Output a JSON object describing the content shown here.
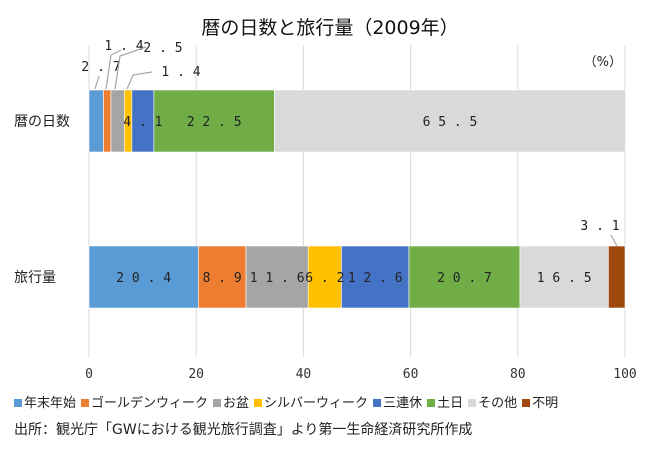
{
  "chart_data": {
    "type": "bar",
    "orientation": "horizontal",
    "stacked": true,
    "title": "暦の日数と旅行量（2009年）",
    "unit_label": "（%）",
    "categories": [
      "暦の日数",
      "旅行量"
    ],
    "series": [
      {
        "name": "年末年始",
        "color": "#5b9bd5",
        "values": [
          2.7,
          20.4
        ],
        "labels": [
          "2.7",
          "20.4"
        ]
      },
      {
        "name": "ゴールデンウィーク",
        "color": "#ed7d31",
        "values": [
          1.4,
          8.9
        ],
        "labels": [
          "1.4",
          "8.9"
        ]
      },
      {
        "name": "お盆",
        "color": "#a5a5a5",
        "values": [
          2.5,
          11.6
        ],
        "labels": [
          "2.5",
          "11.6"
        ]
      },
      {
        "name": "シルバーウィーク",
        "color": "#ffc000",
        "values": [
          1.4,
          6.2
        ],
        "labels": [
          "1.4",
          "6.2"
        ]
      },
      {
        "name": "三連休",
        "color": "#4472c4",
        "values": [
          4.1,
          12.6
        ],
        "labels": [
          "4.1",
          "12.6"
        ]
      },
      {
        "name": "土日",
        "color": "#70ad47",
        "values": [
          22.5,
          20.7
        ],
        "labels": [
          "22.5",
          "20.7"
        ]
      },
      {
        "name": "その他",
        "color": "#d9d9d9",
        "values": [
          65.5,
          16.5
        ],
        "labels": [
          "65.5",
          "16.5"
        ]
      },
      {
        "name": "不明",
        "color": "#9e480e",
        "values": [
          0,
          3.1
        ],
        "labels": [
          "",
          "3.1"
        ]
      }
    ],
    "xlim": [
      0,
      100
    ],
    "xticks": [
      0,
      20,
      40,
      60,
      80,
      100
    ],
    "grid": true,
    "legend_position": "bottom"
  },
  "source": "出所：観光庁「GWにおける観光旅行調査」より第一生命経済研究所作成"
}
